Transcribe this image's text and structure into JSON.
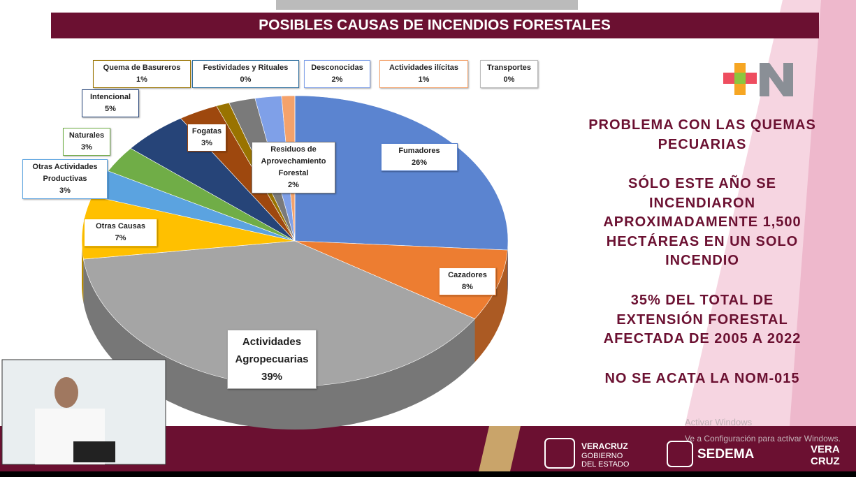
{
  "chart_data": {
    "type": "pie",
    "title": "POSIBLES CAUSAS DE INCENDIOS FORESTALES",
    "categories": [
      "Fumadores",
      "Cazadores",
      "Actividades Agropecuarias",
      "Otras Causas",
      "Otras Actividades Productivas",
      "Naturales",
      "Intencional",
      "Fogatas",
      "Quema de Basureros",
      "Festividades y Rituales",
      "Residuos de Aprovechamiento Forestal",
      "Desconocidas",
      "Actividades ilícitas",
      "Transportes"
    ],
    "values": [
      26,
      8,
      39,
      7,
      3,
      3,
      5,
      3,
      1,
      0,
      2,
      2,
      1,
      0
    ],
    "value_labels": [
      "26%",
      "8%",
      "39%",
      "7%",
      "3%",
      "3%",
      "5%",
      "3%",
      "1%",
      "0%",
      "2%",
      "2%",
      "1%",
      "0%"
    ],
    "colors": [
      "#5b84d0",
      "#ed7d31",
      "#a5a5a5",
      "#ffc000",
      "#5ba3e0",
      "#70ad47",
      "#264478",
      "#9e480e",
      "#997300",
      "#2e6e9e",
      "#7a7a7a",
      "#7fa0e8",
      "#f4a26b",
      "#bbbbbb"
    ]
  },
  "side_text": [
    [
      "PROBLEMA CON LAS QUEMAS",
      "PECUARIAS"
    ],
    [
      "SÓLO ESTE AÑO SE",
      "INCENDIARON",
      "APROXIMADAMENTE 1,500",
      "HECTÁREAS EN UN SOLO",
      "INCENDIO"
    ],
    [
      "35% DEL TOTAL DE",
      "EXTENSIÓN FORESTAL",
      "AFECTADA  DE 2005 A 2022"
    ],
    [
      "NO SE ACATA LA NOM-015"
    ]
  ],
  "footer": {
    "veracruz": [
      "VERACRUZ",
      "GOBIERNO",
      "DEL ESTADO"
    ],
    "sedema": "SEDEMA",
    "vera": [
      "VERA",
      "CRUZ"
    ]
  },
  "watermark": [
    "Activar Windows",
    "Ve a Configuración para activar Windows."
  ]
}
